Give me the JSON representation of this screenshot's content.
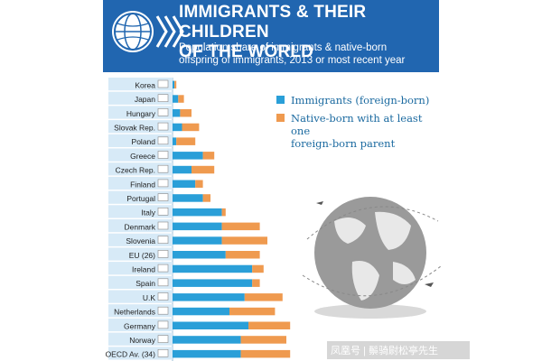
{
  "header": {
    "title_line1": "IMMIGRANTS & THEIR CHILDREN",
    "title_line2": "OF THE WORLD",
    "subtitle_line1": "Population share of immigrants & native-born",
    "subtitle_line2": "offspring of immigrants, 2013 or most recent year"
  },
  "legend": {
    "immigrants": "Immigrants (foreign-born)",
    "native_line1": "Native-born with at least one",
    "native_line2": "foreign-born parent"
  },
  "colors": {
    "header_bg": "#2166b0",
    "immigrants": "#2a9fd8",
    "native_born": "#ef9a4f",
    "row_band": "#d7eaf7"
  },
  "watermark": "凤凰号 | 鬃骑尉松亭先生",
  "chart_data": {
    "type": "bar",
    "orientation": "horizontal",
    "stacked": true,
    "categories": [
      "Korea",
      "Japan",
      "Hungary",
      "Slovak Rep.",
      "Poland",
      "Greece",
      "Czech Rep.",
      "Finland",
      "Portugal",
      "Italy",
      "Denmark",
      "Slovenia",
      "EU (26)",
      "Ireland",
      "Spain",
      "U.K",
      "Netherlands",
      "Germany",
      "Norway",
      "OECD Av. (34)"
    ],
    "series": [
      {
        "name": "Immigrants (foreign-born)",
        "values": [
          0.5,
          1.5,
          2,
          2.5,
          1,
          8,
          5,
          6,
          8,
          13,
          13,
          13,
          14,
          21,
          21,
          19,
          15,
          20,
          18,
          18
        ]
      },
      {
        "name": "Native-born with at least one foreign-born parent",
        "values": [
          0.5,
          1.5,
          3,
          4.5,
          5,
          3,
          6,
          2,
          2,
          1,
          10,
          12,
          9,
          3,
          2,
          10,
          12,
          11,
          12,
          13
        ]
      }
    ],
    "xlim": [
      0,
      45
    ],
    "grid": false,
    "legend_position": "top-right"
  }
}
